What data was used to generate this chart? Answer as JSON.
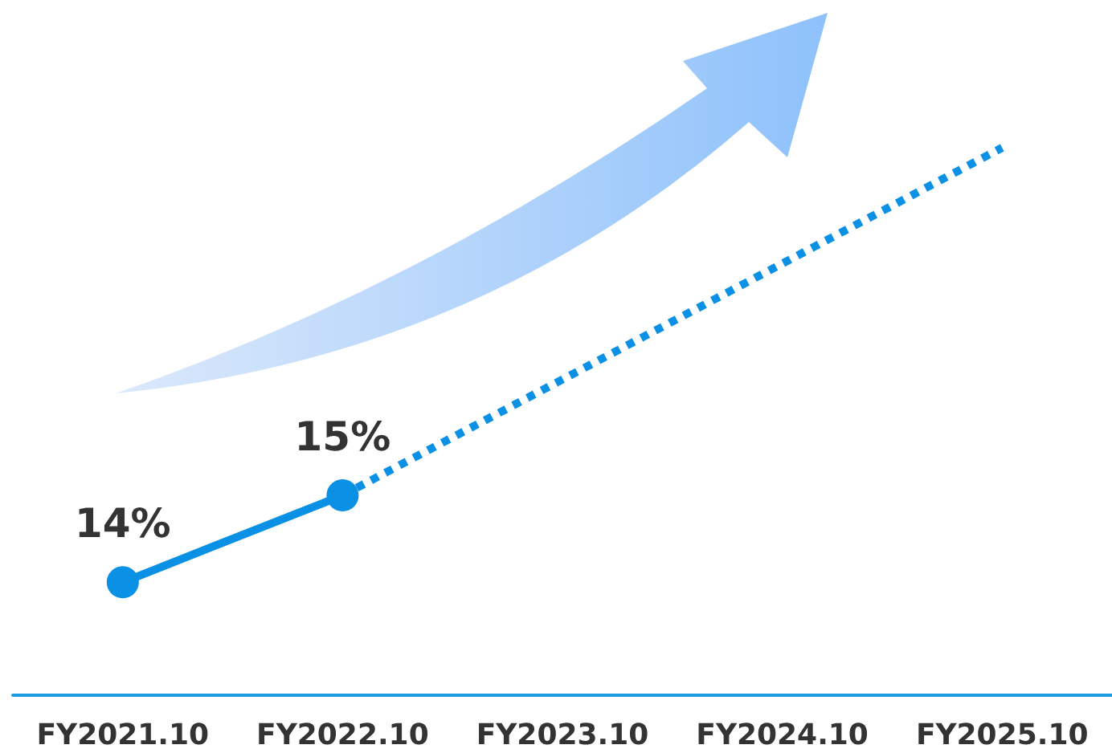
{
  "chart_data": {
    "type": "line",
    "categories": [
      "FY2021.10",
      "FY2022.10",
      "FY2023.10",
      "FY2024.10",
      "FY2025.10"
    ],
    "series": [
      {
        "color": "#0a90e4",
        "values": [
          14,
          15,
          null,
          null,
          null
        ],
        "value_labels": [
          "14%",
          "15%",
          null,
          null,
          null
        ],
        "marker": "circle",
        "line_style": "solid"
      },
      {
        "color": "#0a90e4",
        "values": [
          null,
          15,
          null,
          null,
          19
        ],
        "line_style": "dotted"
      }
    ],
    "tick_labels": "x",
    "grid": false
  }
}
